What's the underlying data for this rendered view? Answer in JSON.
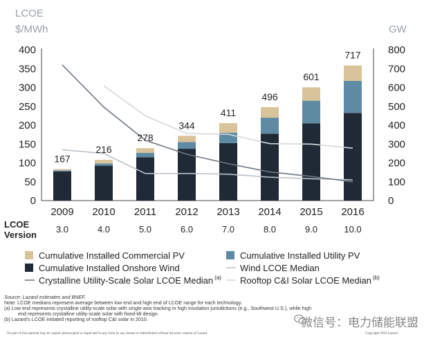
{
  "chart_data": {
    "type": "bar",
    "categories": [
      "2009",
      "2010",
      "2011",
      "2012",
      "2013",
      "2014",
      "2015",
      "2016"
    ],
    "y_left": {
      "label_line1": "LCOE",
      "label_line2": "$/MWh",
      "range": [
        0,
        400
      ],
      "ticks": [
        "0",
        "50",
        "100",
        "150",
        "200",
        "250",
        "300",
        "350",
        "400"
      ]
    },
    "y_right": {
      "label": "GW",
      "range": [
        0,
        800
      ],
      "ticks": [
        "0",
        "100",
        "200",
        "300",
        "400",
        "500",
        "600",
        "700",
        "800"
      ]
    },
    "bar_series": [
      {
        "name": "Cumulative Installed Onshore Wind",
        "color": "#1f2a36",
        "values": [
          155,
          185,
          230,
          275,
          305,
          355,
          410,
          465
        ]
      },
      {
        "name": "Cumulative Installed Utility PV",
        "color": "#5f8aa3",
        "values": [
          5,
          12,
          23,
          35,
          55,
          85,
          120,
          170
        ]
      },
      {
        "name": "Cumulative Installed Commercial PV",
        "color": "#d9c39a",
        "values": [
          7,
          19,
          25,
          34,
          51,
          56,
          71,
          82
        ]
      }
    ],
    "bar_totals": [
      "167",
      "216",
      "278",
      "344",
      "411",
      "496",
      "601",
      "717"
    ],
    "line_series": [
      {
        "name": "Wind LCOE Median",
        "color": "#b9c1c8",
        "x": [
          "2009",
          "2010",
          "2011",
          "2012",
          "2013",
          "2014",
          "2015",
          "2016"
        ],
        "values": [
          135,
          125,
          72,
          72,
          70,
          62,
          58,
          55
        ]
      },
      {
        "name": "Crystalline Utility-Scale Solar LCOE Median",
        "color": "#6e7780",
        "x": [
          "2009",
          "2010",
          "2011",
          "2012",
          "2013",
          "2014",
          "2015",
          "2016"
        ],
        "values": [
          360,
          248,
          160,
          123,
          98,
          76,
          64,
          50
        ]
      },
      {
        "name": "Rooftop C&I Solar LCOE Median",
        "color": "#d3d8dd",
        "x": [
          "2010",
          "2011",
          "2012",
          "2013",
          "2014",
          "2015",
          "2016"
        ],
        "values": [
          305,
          225,
          178,
          176,
          151,
          150,
          139
        ]
      }
    ],
    "version_label_line1": "LCOE",
    "version_label_line2": "Version",
    "versions": [
      "3.0",
      "4.0",
      "5.0",
      "6.0",
      "7.0",
      "8.0",
      "9.0",
      "10.0"
    ],
    "legend": [
      {
        "name": "Cumulative Installed Commercial PV",
        "kind": "box",
        "color": "#d9c39a",
        "sup": ""
      },
      {
        "name": "Cumulative Installed Utility PV",
        "kind": "box",
        "color": "#5f8aa3",
        "sup": ""
      },
      {
        "name": "Cumulative Installed Onshore Wind",
        "kind": "box",
        "color": "#1f2a36",
        "sup": ""
      },
      {
        "name": "Wind LCOE Median",
        "kind": "line",
        "color": "#b9c1c8",
        "sup": ""
      },
      {
        "name": "Crystalline Utility-Scale Solar LCOE Median",
        "kind": "line",
        "color": "#6e7780",
        "sup": "(a)"
      },
      {
        "name": "Rooftop C&I Solar LCOE Median",
        "kind": "line",
        "color": "#d3d8dd",
        "sup": "(b)"
      }
    ],
    "grid": false,
    "legend_placement": "bottom"
  },
  "footnotes": {
    "source": "Source:  Lazard estimates and BNEF.",
    "note": "Note:  LCOE medians represent average between low end and high end of LCOE range for each technology.",
    "a_line1": "(a)     Low end represents crystalline utility-scale solar with single-axis tracking in high insolation jurisdictions (e.g., Southwest U.S.), while high",
    "a_line2": "end represents crystalline utility-scale solar with fixed-tilt design.",
    "b_line1": "(b)     Lazard's LCOE initiated reporting of rooftop C&I solar in 2010."
  },
  "copyright_left": "No part of this material may be copied, photocopied or duplicated in any form by any means or redistributed without the prior consent of Lazard.",
  "copyright_right": "Copyright 2016 Lazard",
  "watermark": "微信号：电力储能联盟",
  "watermark_icon": "wechat-icon"
}
